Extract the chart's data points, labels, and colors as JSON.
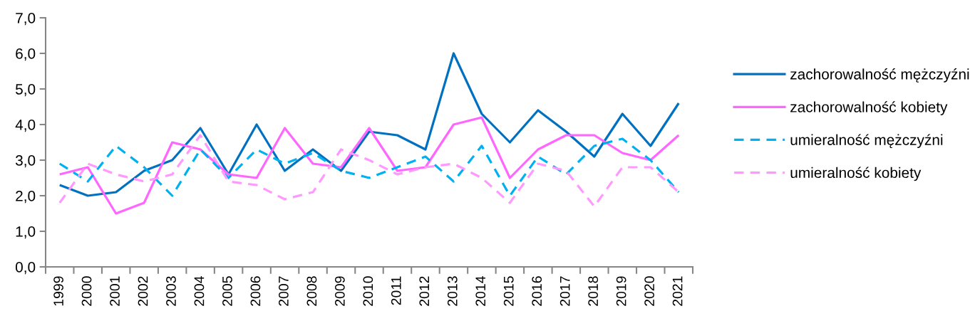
{
  "chart_data": {
    "type": "line",
    "categories": [
      "1999",
      "2000",
      "2001",
      "2002",
      "2003",
      "2004",
      "2005",
      "2006",
      "2007",
      "2008",
      "2009",
      "2010",
      "2011",
      "2012",
      "2013",
      "2014",
      "2015",
      "2016",
      "2017",
      "2018",
      "2019",
      "2020",
      "2021"
    ],
    "series": [
      {
        "name": "zachorowalność mężczyźni",
        "color": "#0070c0",
        "line_style": "solid",
        "values": [
          2.3,
          2.0,
          2.1,
          2.7,
          3.0,
          3.9,
          2.6,
          4.0,
          2.7,
          3.3,
          2.7,
          3.8,
          3.7,
          3.3,
          6.0,
          4.3,
          3.5,
          4.4,
          3.8,
          3.1,
          4.3,
          3.4,
          4.6
        ]
      },
      {
        "name": "zachorowalność kobiety",
        "color": "#ff66ff",
        "line_style": "solid",
        "values": [
          2.6,
          2.8,
          1.5,
          1.8,
          3.5,
          3.3,
          2.6,
          2.5,
          3.9,
          2.9,
          2.8,
          3.9,
          2.7,
          2.8,
          4.0,
          4.2,
          2.5,
          3.3,
          3.7,
          3.7,
          3.2,
          3.0,
          3.7
        ]
      },
      {
        "name": "umieralność mężczyźni",
        "color": "#00b0f0",
        "line_style": "dashed",
        "values": [
          2.9,
          2.4,
          3.4,
          2.8,
          2.0,
          3.3,
          2.5,
          3.3,
          2.9,
          3.2,
          2.7,
          2.5,
          2.8,
          3.1,
          2.4,
          3.4,
          2.0,
          3.1,
          2.6,
          3.4,
          3.6,
          3.0,
          2.1
        ]
      },
      {
        "name": "umieralność kobiety",
        "color": "#ff99ff",
        "line_style": "dashed",
        "values": [
          1.8,
          2.9,
          2.6,
          2.4,
          2.6,
          3.7,
          2.4,
          2.3,
          1.9,
          2.1,
          3.3,
          3.0,
          2.6,
          2.8,
          2.9,
          2.5,
          1.8,
          2.9,
          2.7,
          1.7,
          2.8,
          2.8,
          2.1
        ]
      }
    ],
    "ylim": [
      0,
      7
    ],
    "yticks": [
      {
        "value": 0,
        "label": "0,0"
      },
      {
        "value": 1,
        "label": "1,0"
      },
      {
        "value": 2,
        "label": "2,0"
      },
      {
        "value": 3,
        "label": "3,0"
      },
      {
        "value": 4,
        "label": "4,0"
      },
      {
        "value": 5,
        "label": "5,0"
      },
      {
        "value": 6,
        "label": "6,0"
      },
      {
        "value": 7,
        "label": "7,0"
      }
    ],
    "grid": false,
    "legend": "right"
  }
}
